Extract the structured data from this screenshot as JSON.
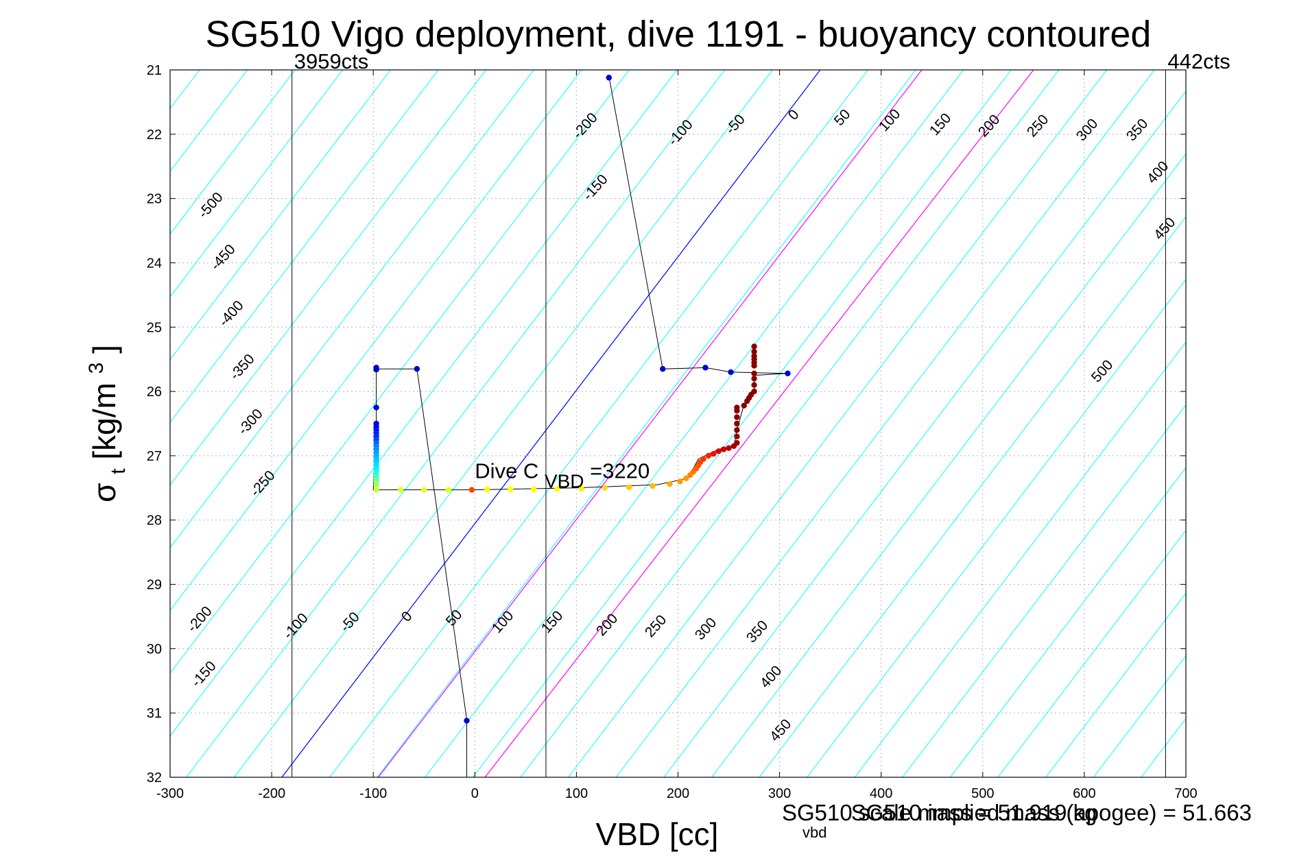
{
  "chart_data": {
    "type": "scatter",
    "title": "SG510 Vigo deployment, dive 1191 - buoyancy contoured",
    "xlabel": "VBD [cc]",
    "ylabel_main": "σ",
    "ylabel_sub": "t",
    "ylabel_units": "[kg/m",
    "ylabel_sup": "3",
    "ylabel_close": "]",
    "xlim": [
      -300,
      700
    ],
    "ylim": [
      21,
      32
    ],
    "y_reversed": true,
    "grid": true,
    "xticks": [
      -300,
      -200,
      -100,
      0,
      100,
      200,
      300,
      400,
      500,
      600,
      700
    ],
    "yticks": [
      21,
      22,
      23,
      24,
      25,
      26,
      27,
      28,
      29,
      30,
      31,
      32
    ],
    "colors": {
      "contour": "#00ffff",
      "zero_contour": "#0000ff",
      "magenta_contour": "#ff00ff",
      "path": "#000000",
      "vertical_lines": "#000000"
    },
    "contours": {
      "values_top_row": [
        -200,
        -150,
        -100,
        -50,
        0,
        50,
        100,
        150,
        200,
        250,
        300,
        350,
        400,
        450
      ],
      "values_left_column": [
        -500,
        -450,
        -400,
        -350,
        -300,
        -250,
        500
      ],
      "values_bottom_row": [
        -200,
        -150,
        -100,
        -50,
        0,
        50,
        100,
        150,
        200,
        250,
        300,
        350,
        400,
        450
      ],
      "zero_line": [
        [
          -190,
          32
        ],
        [
          340,
          21
        ]
      ],
      "magenta_lines": [
        [
          [
            -95,
            32
          ],
          [
            440,
            21
          ]
        ],
        [
          [
            10,
            32
          ],
          [
            550,
            21
          ]
        ]
      ]
    },
    "vertical_lines": [
      {
        "x": -180,
        "label": "3959cts"
      },
      {
        "x": 70,
        "label": ""
      },
      {
        "x": 680,
        "label": "442cts"
      }
    ],
    "path_line": [
      [
        132,
        21.1
      ],
      [
        185,
        25.65
      ],
      [
        227,
        25.63
      ],
      [
        252,
        25.7
      ],
      [
        308,
        25.72
      ],
      [
        275,
        25.75
      ],
      [
        275,
        26.0
      ],
      [
        265,
        26.2
      ],
      [
        258,
        26.6
      ],
      [
        255,
        26.85
      ],
      [
        240,
        26.9
      ],
      [
        220,
        27.05
      ],
      [
        210,
        27.35
      ],
      [
        180,
        27.45
      ],
      [
        100,
        27.5
      ],
      [
        0,
        27.53
      ],
      [
        -100,
        27.53
      ],
      [
        -97,
        26.5
      ],
      [
        -97,
        25.65
      ],
      [
        -57,
        25.65
      ],
      [
        -8,
        31.1
      ],
      [
        -8,
        32
      ]
    ],
    "points": [
      {
        "x": 132,
        "y": 21.12,
        "c": "#0000cc"
      },
      {
        "x": 185,
        "y": 25.65,
        "c": "#0000cc"
      },
      {
        "x": 227,
        "y": 25.63,
        "c": "#0000cc"
      },
      {
        "x": 252,
        "y": 25.7,
        "c": "#0000cc"
      },
      {
        "x": 308,
        "y": 25.72,
        "c": "#0000cc"
      },
      {
        "x": -97,
        "y": 25.63,
        "c": "#0000cc"
      },
      {
        "x": -97,
        "y": 25.66,
        "c": "#0000cc"
      },
      {
        "x": -57,
        "y": 25.65,
        "c": "#0000cc"
      },
      {
        "x": -8,
        "y": 31.12,
        "c": "#0000cc"
      },
      {
        "x": -97,
        "y": 26.25,
        "c": "#0000dd"
      },
      {
        "x": -97,
        "y": 26.5,
        "c": "#0000ee"
      },
      {
        "x": -97,
        "y": 26.55,
        "c": "#0000ff"
      },
      {
        "x": -97,
        "y": 26.6,
        "c": "#0010ff"
      },
      {
        "x": -97,
        "y": 26.65,
        "c": "#0020ff"
      },
      {
        "x": -97,
        "y": 26.7,
        "c": "#0030ff"
      },
      {
        "x": -97,
        "y": 26.75,
        "c": "#0040ff"
      },
      {
        "x": -97,
        "y": 26.8,
        "c": "#0060ff"
      },
      {
        "x": -97,
        "y": 26.85,
        "c": "#0080ff"
      },
      {
        "x": -97,
        "y": 26.9,
        "c": "#0090ff"
      },
      {
        "x": -97,
        "y": 26.95,
        "c": "#00a0ff"
      },
      {
        "x": -97,
        "y": 27.0,
        "c": "#00b0ff"
      },
      {
        "x": -97,
        "y": 27.05,
        "c": "#00c0ff"
      },
      {
        "x": -97,
        "y": 27.1,
        "c": "#00d0ff"
      },
      {
        "x": -97,
        "y": 27.15,
        "c": "#00e0ff"
      },
      {
        "x": -97,
        "y": 27.2,
        "c": "#00f0ff"
      },
      {
        "x": -97,
        "y": 27.25,
        "c": "#10ffee"
      },
      {
        "x": -97,
        "y": 27.3,
        "c": "#30ffcc"
      },
      {
        "x": -97,
        "y": 27.35,
        "c": "#50ffaa"
      },
      {
        "x": -97,
        "y": 27.4,
        "c": "#80ff80"
      },
      {
        "x": -97,
        "y": 27.45,
        "c": "#a0ff60"
      },
      {
        "x": -97,
        "y": 27.53,
        "c": "#ccff33"
      },
      {
        "x": -73,
        "y": 27.53,
        "c": "#ddff22"
      },
      {
        "x": -50,
        "y": 27.53,
        "c": "#e8ff11"
      },
      {
        "x": -26,
        "y": 27.53,
        "c": "#f0ff00"
      },
      {
        "x": -3,
        "y": 27.53,
        "c": "#ff4400"
      },
      {
        "x": 12,
        "y": 27.52,
        "c": "#ffff00"
      },
      {
        "x": 35,
        "y": 27.52,
        "c": "#ffff00"
      },
      {
        "x": 58,
        "y": 27.52,
        "c": "#ffff00"
      },
      {
        "x": 81,
        "y": 27.52,
        "c": "#ffff00"
      },
      {
        "x": 105,
        "y": 27.51,
        "c": "#ffee00"
      },
      {
        "x": 128,
        "y": 27.5,
        "c": "#ffdd00"
      },
      {
        "x": 152,
        "y": 27.49,
        "c": "#ffcc00"
      },
      {
        "x": 175,
        "y": 27.47,
        "c": "#ffbb00"
      },
      {
        "x": 192,
        "y": 27.44,
        "c": "#ffaa00"
      },
      {
        "x": 202,
        "y": 27.4,
        "c": "#ff9900"
      },
      {
        "x": 208,
        "y": 27.35,
        "c": "#ff9900"
      },
      {
        "x": 212,
        "y": 27.3,
        "c": "#ff8800"
      },
      {
        "x": 215,
        "y": 27.25,
        "c": "#ff7700"
      },
      {
        "x": 218,
        "y": 27.2,
        "c": "#ff6600"
      },
      {
        "x": 220,
        "y": 27.15,
        "c": "#ff5500"
      },
      {
        "x": 222,
        "y": 27.1,
        "c": "#ff4400"
      },
      {
        "x": 225,
        "y": 27.05,
        "c": "#ff3300"
      },
      {
        "x": 230,
        "y": 27.0,
        "c": "#ff2200"
      },
      {
        "x": 235,
        "y": 26.97,
        "c": "#ee1100"
      },
      {
        "x": 240,
        "y": 26.93,
        "c": "#dd0000"
      },
      {
        "x": 245,
        "y": 26.9,
        "c": "#cc0000"
      },
      {
        "x": 250,
        "y": 26.88,
        "c": "#bb0000"
      },
      {
        "x": 255,
        "y": 26.85,
        "c": "#aa0000"
      },
      {
        "x": 258,
        "y": 26.8,
        "c": "#990000"
      },
      {
        "x": 258,
        "y": 26.7,
        "c": "#990000"
      },
      {
        "x": 258,
        "y": 26.6,
        "c": "#880000"
      },
      {
        "x": 258,
        "y": 26.5,
        "c": "#880000"
      },
      {
        "x": 258,
        "y": 26.4,
        "c": "#880000"
      },
      {
        "x": 258,
        "y": 26.3,
        "c": "#880000"
      },
      {
        "x": 258,
        "y": 26.25,
        "c": "#880000"
      },
      {
        "x": 265,
        "y": 26.22,
        "c": "#880000"
      },
      {
        "x": 268,
        "y": 26.15,
        "c": "#880000"
      },
      {
        "x": 270,
        "y": 26.1,
        "c": "#880000"
      },
      {
        "x": 272,
        "y": 26.05,
        "c": "#880000"
      },
      {
        "x": 275,
        "y": 26.0,
        "c": "#880000"
      },
      {
        "x": 275,
        "y": 25.9,
        "c": "#880000"
      },
      {
        "x": 275,
        "y": 25.8,
        "c": "#880000"
      },
      {
        "x": 275,
        "y": 25.72,
        "c": "#880000"
      },
      {
        "x": 275,
        "y": 25.6,
        "c": "#880000"
      },
      {
        "x": 275,
        "y": 25.55,
        "c": "#880000"
      },
      {
        "x": 275,
        "y": 25.5,
        "c": "#880000"
      },
      {
        "x": 275,
        "y": 25.45,
        "c": "#880000"
      },
      {
        "x": 275,
        "y": 25.38,
        "c": "#880000"
      },
      {
        "x": 275,
        "y": 25.3,
        "c": "#880000"
      }
    ],
    "annotation": {
      "text_main": "Dive C",
      "text_sub": "VBD",
      "text_tail": "=3220",
      "x": 0,
      "y": 27.35
    },
    "footer_lines": [
      "SG510 implied mass (apogee) = 51.663",
      "SG510 scale mass = 51.919 kg"
    ],
    "footer_sub": "vbd"
  }
}
